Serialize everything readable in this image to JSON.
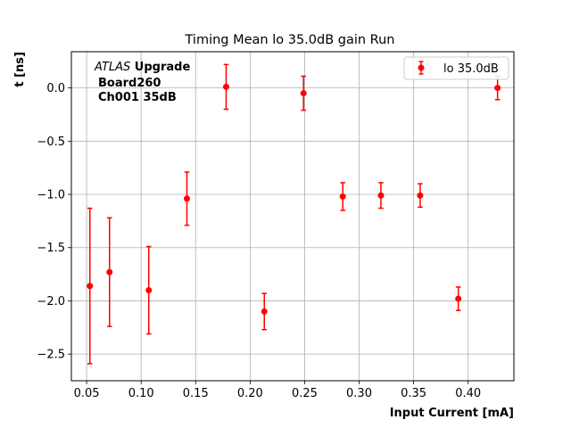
{
  "chart_data": {
    "type": "scatter",
    "title": "Timing Mean lo 35.0dB gain Run",
    "xlabel": "Input Current [mA]",
    "ylabel": "t [ns]",
    "xlim": [
      0.036,
      0.442
    ],
    "ylim": [
      -2.75,
      0.34
    ],
    "xticks": [
      0.05,
      0.1,
      0.15,
      0.2,
      0.25,
      0.3,
      0.35,
      0.4
    ],
    "xtick_labels": [
      "0.05",
      "0.10",
      "0.15",
      "0.20",
      "0.25",
      "0.30",
      "0.35",
      "0.40"
    ],
    "yticks": [
      0.0,
      -0.5,
      -1.0,
      -1.5,
      -2.0,
      -2.5
    ],
    "ytick_labels": [
      "0.0",
      "−0.5",
      "−1.0",
      "−1.5",
      "−2.0",
      "−2.5"
    ],
    "grid": true,
    "legend_position": "top-right",
    "series": [
      {
        "name": "lo 35.0dB",
        "color": "#ff0000",
        "marker": "circle",
        "points": [
          {
            "x": 0.053,
            "y": -1.86,
            "err": 0.73
          },
          {
            "x": 0.071,
            "y": -1.73,
            "err": 0.51
          },
          {
            "x": 0.107,
            "y": -1.9,
            "err": 0.41
          },
          {
            "x": 0.142,
            "y": -1.04,
            "err": 0.25
          },
          {
            "x": 0.178,
            "y": 0.01,
            "err": 0.21
          },
          {
            "x": 0.213,
            "y": -2.1,
            "err": 0.17
          },
          {
            "x": 0.249,
            "y": -0.05,
            "err": 0.16
          },
          {
            "x": 0.285,
            "y": -1.02,
            "err": 0.13
          },
          {
            "x": 0.32,
            "y": -1.01,
            "err": 0.12
          },
          {
            "x": 0.356,
            "y": -1.01,
            "err": 0.11
          },
          {
            "x": 0.391,
            "y": -1.98,
            "err": 0.11
          },
          {
            "x": 0.427,
            "y": 0.0,
            "err": 0.11
          }
        ]
      }
    ],
    "annotation": {
      "line1_italic": "ATLAS",
      "line1_bold": " Upgrade",
      "line2": "Board260",
      "line3": "Ch001 35dB"
    }
  }
}
